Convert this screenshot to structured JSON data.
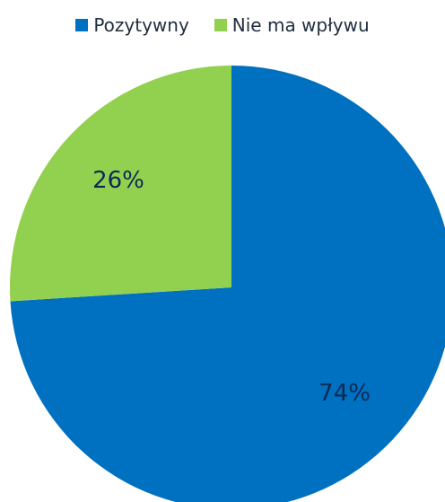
{
  "chart_data": {
    "type": "pie",
    "title": "",
    "legend_position": "top",
    "slices": [
      {
        "name": "Pozytywny",
        "value": 74,
        "label": "74%",
        "color": "#0070c0",
        "label_color": "#0d2a55"
      },
      {
        "name": "Nie ma wpływu",
        "value": 26,
        "label": "26%",
        "color": "#92d050",
        "label_color": "#0d2a55"
      }
    ],
    "start_angle_deg": 0,
    "direction": "clockwise"
  },
  "legend": {
    "items": [
      {
        "label": "Pozytywny",
        "color": "#0070c0"
      },
      {
        "label": "Nie ma wpływu",
        "color": "#92d050"
      }
    ]
  }
}
